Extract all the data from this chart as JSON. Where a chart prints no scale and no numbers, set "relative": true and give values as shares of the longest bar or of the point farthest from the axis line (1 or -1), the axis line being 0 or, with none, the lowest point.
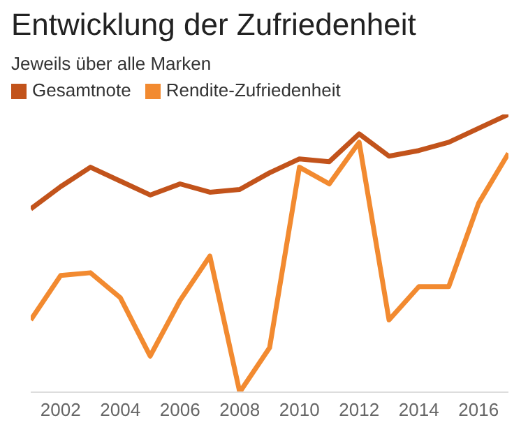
{
  "chart_data": {
    "type": "line",
    "title": "Entwicklung der Zufriedenheit",
    "subtitle": "Jeweils über alle Marken",
    "relative": true,
    "x": [
      2001,
      2002,
      2003,
      2004,
      2005,
      2006,
      2007,
      2008,
      2009,
      2010,
      2011,
      2012,
      2013,
      2014,
      2015,
      2016,
      2017
    ],
    "xticks": [
      2002,
      2004,
      2006,
      2008,
      2010,
      2012,
      2014,
      2016
    ],
    "xlim": [
      2001,
      2017
    ],
    "legend": "top",
    "grid": false,
    "series": [
      {
        "name": "Gesamtnote",
        "color": "#c2531b",
        "values": [
          0.66,
          0.74,
          0.81,
          0.76,
          0.71,
          0.75,
          0.72,
          0.73,
          0.79,
          0.84,
          0.83,
          0.93,
          0.85,
          0.87,
          0.9,
          0.95,
          1
        ]
      },
      {
        "name": "Rendite-Zufriedenheit",
        "color": "#f28a30",
        "values": [
          0.26,
          0.42,
          0.43,
          0.34,
          0.13,
          0.33,
          0.49,
          0,
          0.16,
          0.81,
          0.75,
          0.9,
          0.26,
          0.38,
          0.38,
          0.68,
          0.86
        ]
      }
    ]
  }
}
